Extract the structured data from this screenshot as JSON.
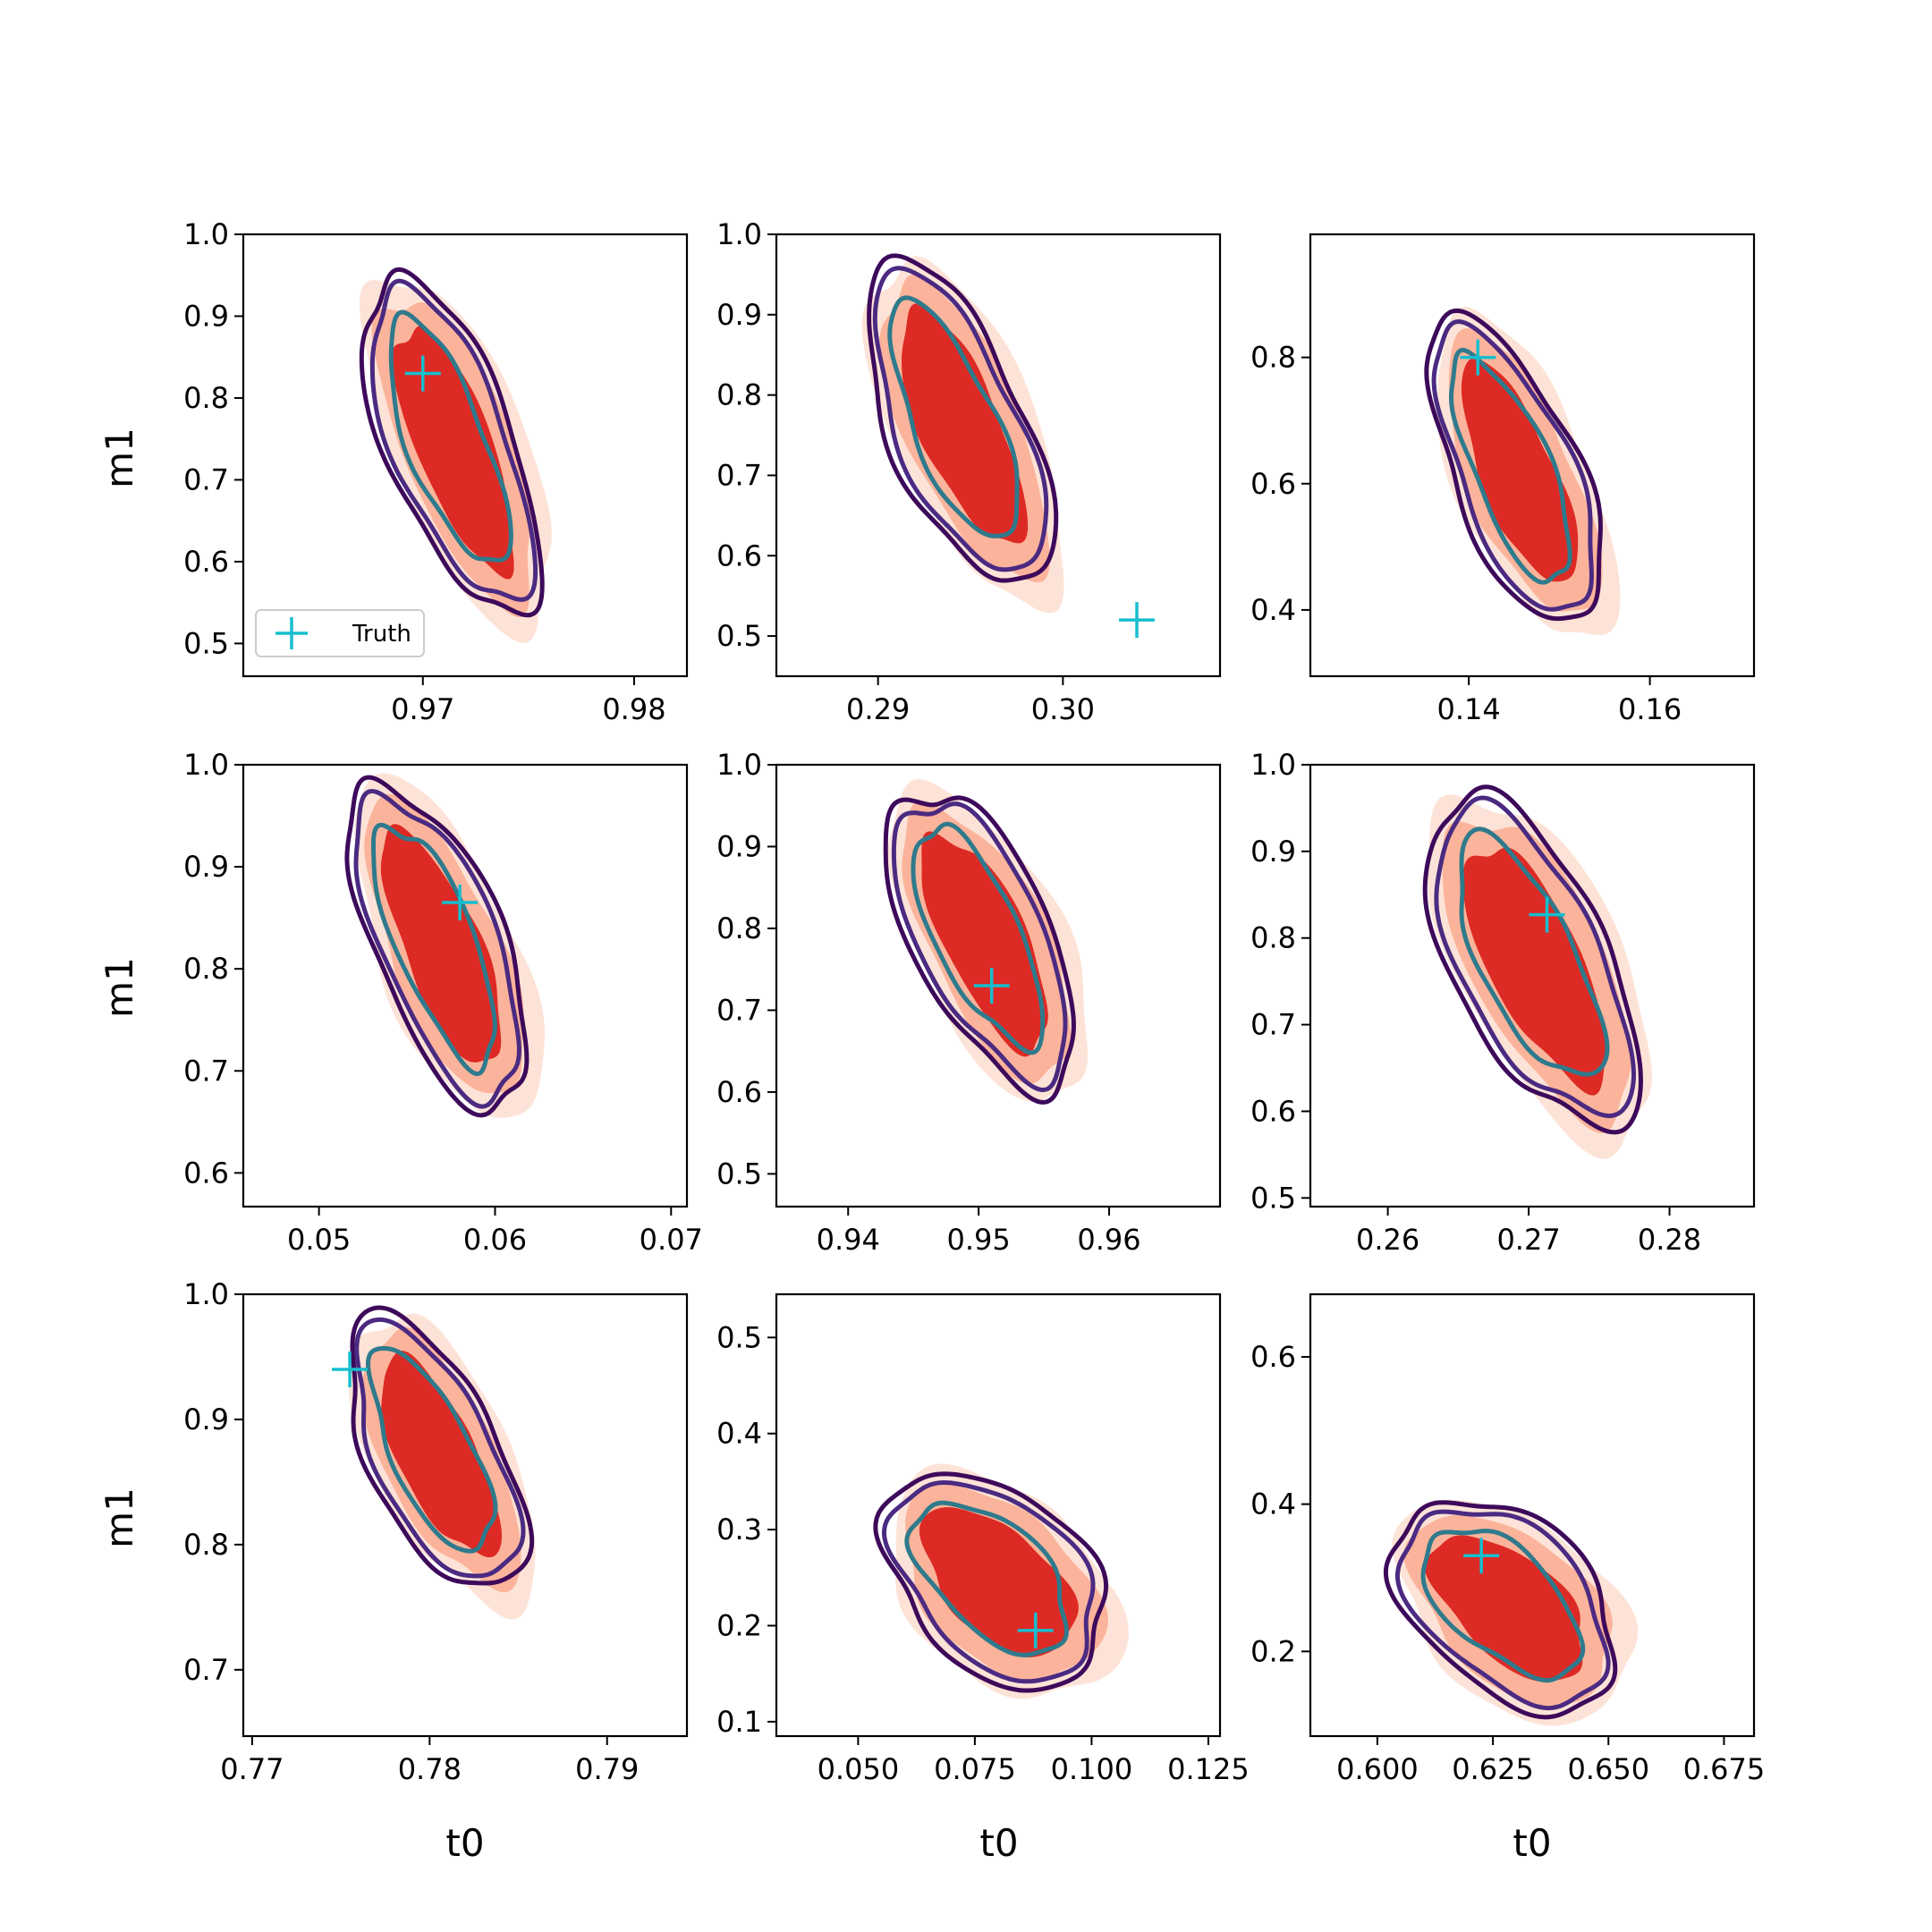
{
  "figure": {
    "xlabel": "t0",
    "ylabel": "m1",
    "legend_label": "Truth"
  },
  "colors": {
    "fill_outer": "#fde3d7",
    "fill_mid": "#fbb49b",
    "fill_inner": "#dd2a24",
    "contour_outer": "#3d0a5b",
    "contour_mid": "#4b2a82",
    "contour_inner": "#2f7a8c",
    "truth_marker": "#17becf"
  },
  "chart_data": [
    {
      "type": "contour",
      "panel": "r1c1",
      "x_ticks": [
        "0.97",
        "0.98"
      ],
      "x_tick_values": [
        0.97,
        0.98
      ],
      "xlim": [
        0.9615,
        0.9825
      ],
      "y_ticks": [
        "0.5",
        "0.6",
        "0.7",
        "0.8",
        "0.9",
        "1.0"
      ],
      "y_tick_values": [
        0.5,
        0.6,
        0.7,
        0.8,
        0.9,
        1.0
      ],
      "ylim": [
        0.46,
        1.0
      ],
      "truth": {
        "x": 0.97,
        "y": 0.83
      },
      "center": {
        "x": 0.9715,
        "y": 0.74
      },
      "scale": {
        "x": 0.0037,
        "y": 0.245
      },
      "xlabel": "",
      "ylabel": "m1",
      "legend": "lower-left"
    },
    {
      "type": "contour",
      "panel": "r1c2",
      "x_ticks": [
        "0.29",
        "0.30"
      ],
      "x_tick_values": [
        0.29,
        0.3
      ],
      "xlim": [
        0.2845,
        0.3085
      ],
      "y_ticks": [
        "0.5",
        "0.6",
        "0.7",
        "0.8",
        "0.9",
        "1.0"
      ],
      "y_tick_values": [
        0.5,
        0.6,
        0.7,
        0.8,
        0.9,
        1.0
      ],
      "ylim": [
        0.45,
        1.0
      ],
      "truth": {
        "x": 0.304,
        "y": 0.52
      },
      "center": {
        "x": 0.2945,
        "y": 0.76
      },
      "scale": {
        "x": 0.0045,
        "y": 0.24
      },
      "xlabel": "",
      "ylabel": ""
    },
    {
      "type": "contour",
      "panel": "r1c3",
      "x_ticks": [
        "0.14",
        "0.16"
      ],
      "x_tick_values": [
        0.14,
        0.16
      ],
      "xlim": [
        0.1225,
        0.1715
      ],
      "y_ticks": [
        "0.4",
        "0.6",
        "0.8"
      ],
      "y_tick_values": [
        0.4,
        0.6,
        0.8
      ],
      "ylim": [
        0.295,
        0.995
      ],
      "truth": {
        "x": 0.141,
        "y": 0.8
      },
      "center": {
        "x": 0.1455,
        "y": 0.615
      },
      "scale": {
        "x": 0.0085,
        "y": 0.29
      },
      "xlabel": "",
      "ylabel": ""
    },
    {
      "type": "contour",
      "panel": "r2c1",
      "x_ticks": [
        "0.05",
        "0.06",
        "0.07"
      ],
      "x_tick_values": [
        0.05,
        0.06,
        0.07
      ],
      "xlim": [
        0.0457,
        0.0709
      ],
      "y_ticks": [
        "0.6",
        "0.7",
        "0.8",
        "0.9",
        "1.0"
      ],
      "y_tick_values": [
        0.6,
        0.7,
        0.8,
        0.9,
        1.0
      ],
      "ylim": [
        0.567,
        1.0
      ],
      "truth": {
        "x": 0.058,
        "y": 0.865
      },
      "center": {
        "x": 0.057,
        "y": 0.82
      },
      "scale": {
        "x": 0.0045,
        "y": 0.19
      },
      "xlabel": "",
      "ylabel": "m1"
    },
    {
      "type": "contour",
      "panel": "r2c2",
      "x_ticks": [
        "0.94",
        "0.95",
        "0.96"
      ],
      "x_tick_values": [
        0.94,
        0.95,
        0.96
      ],
      "xlim": [
        0.9345,
        0.9685
      ],
      "y_ticks": [
        "0.5",
        "0.6",
        "0.7",
        "0.8",
        "0.9",
        "1.0"
      ],
      "y_tick_values": [
        0.5,
        0.6,
        0.7,
        0.8,
        0.9,
        1.0
      ],
      "ylim": [
        0.46,
        1.0
      ],
      "truth": {
        "x": 0.951,
        "y": 0.73
      },
      "center": {
        "x": 0.9505,
        "y": 0.785
      },
      "scale": {
        "x": 0.0065,
        "y": 0.215
      },
      "xlabel": "",
      "ylabel": ""
    },
    {
      "type": "contour",
      "panel": "r2c3",
      "x_ticks": [
        "0.26",
        "0.27",
        "0.28"
      ],
      "x_tick_values": [
        0.26,
        0.27,
        0.28
      ],
      "xlim": [
        0.2545,
        0.286
      ],
      "y_ticks": [
        "0.5",
        "0.6",
        "0.7",
        "0.8",
        "0.9",
        "1.0"
      ],
      "y_tick_values": [
        0.5,
        0.6,
        0.7,
        0.8,
        0.9,
        1.0
      ],
      "ylim": [
        0.49,
        1.0
      ],
      "truth": {
        "x": 0.2713,
        "y": 0.827
      },
      "center": {
        "x": 0.2705,
        "y": 0.77
      },
      "scale": {
        "x": 0.0068,
        "y": 0.225
      },
      "xlabel": "",
      "ylabel": ""
    },
    {
      "type": "contour",
      "panel": "r3c1",
      "x_ticks": [
        "0.77",
        "0.78",
        "0.79"
      ],
      "x_tick_values": [
        0.77,
        0.78,
        0.79
      ],
      "xlim": [
        0.7695,
        0.7945
      ],
      "y_ticks": [
        "0.7",
        "0.8",
        "0.9",
        "1.0"
      ],
      "y_tick_values": [
        0.7,
        0.8,
        0.9,
        1.0
      ],
      "ylim": [
        0.647,
        1.0
      ],
      "truth": {
        "x": 0.7755,
        "y": 0.94
      },
      "center": {
        "x": 0.7805,
        "y": 0.87
      },
      "scale": {
        "x": 0.0045,
        "y": 0.13
      },
      "xlabel": "t0",
      "ylabel": "m1"
    },
    {
      "type": "contour",
      "panel": "r3c2",
      "x_ticks": [
        "0.050",
        "0.075",
        "0.100",
        "0.125"
      ],
      "x_tick_values": [
        0.05,
        0.075,
        0.1,
        0.125
      ],
      "xlim": [
        0.0325,
        0.1275
      ],
      "y_ticks": [
        "0.1",
        "0.2",
        "0.3",
        "0.4",
        "0.5"
      ],
      "y_tick_values": [
        0.1,
        0.2,
        0.3,
        0.4,
        0.5
      ],
      "ylim": [
        0.085,
        0.545
      ],
      "truth": {
        "x": 0.088,
        "y": 0.195
      },
      "center": {
        "x": 0.08,
        "y": 0.245
      },
      "scale": {
        "x": 0.024,
        "y": 0.11
      },
      "xlabel": "t0",
      "ylabel": ""
    },
    {
      "type": "contour",
      "panel": "r3c3",
      "x_ticks": [
        "0.600",
        "0.625",
        "0.650",
        "0.675"
      ],
      "x_tick_values": [
        0.6,
        0.625,
        0.65,
        0.675
      ],
      "xlim": [
        0.5855,
        0.6815
      ],
      "y_ticks": [
        "0.2",
        "0.4",
        "0.6"
      ],
      "y_tick_values": [
        0.2,
        0.4,
        0.6
      ],
      "ylim": [
        0.085,
        0.685
      ],
      "truth": {
        "x": 0.6225,
        "y": 0.33
      },
      "center": {
        "x": 0.6285,
        "y": 0.26
      },
      "scale": {
        "x": 0.025,
        "y": 0.14
      },
      "xlabel": "t0",
      "ylabel": ""
    }
  ]
}
